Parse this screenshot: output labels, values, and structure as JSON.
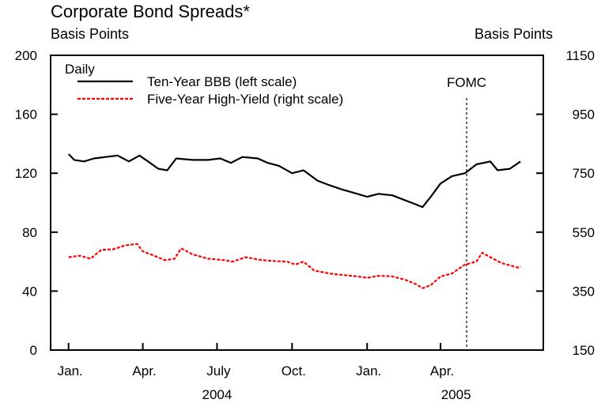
{
  "chart_data": {
    "type": "line",
    "title": "Corporate Bond Spreads*",
    "ylabel_left": "Basis Points",
    "ylabel_right": "Basis Points",
    "ylim_left": [
      0,
      200
    ],
    "ylim_right": [
      150,
      1150
    ],
    "yticks_left": [
      0,
      40,
      80,
      120,
      160,
      200
    ],
    "yticks_right": [
      150,
      350,
      550,
      750,
      950,
      1150
    ],
    "xlim": [
      "2003-12-10",
      "2005-08-05"
    ],
    "month_labels": [
      {
        "date": "2004-01-01",
        "label": "Jan."
      },
      {
        "date": "2004-04-01",
        "label": "Apr."
      },
      {
        "date": "2004-07-01",
        "label": "July"
      },
      {
        "date": "2004-10-01",
        "label": "Oct."
      },
      {
        "date": "2005-01-01",
        "label": "Jan."
      },
      {
        "date": "2005-04-01",
        "label": "Apr."
      }
    ],
    "year_labels": [
      {
        "date": "2004-07-01",
        "label": "2004"
      },
      {
        "date": "2005-04-20",
        "label": "2005"
      }
    ],
    "legend_heading": "Daily",
    "legend_position": "top-left",
    "grid": false,
    "annotation": {
      "label": "FOMC",
      "date": "2005-05-03"
    },
    "series": [
      {
        "name": "Ten-Year BBB (left scale)",
        "axis": "left",
        "color": "#000000",
        "style": "solid",
        "points": [
          [
            "2004-01-01",
            133
          ],
          [
            "2004-01-08",
            129
          ],
          [
            "2004-01-20",
            128
          ],
          [
            "2004-02-01",
            130
          ],
          [
            "2004-02-15",
            131
          ],
          [
            "2004-03-01",
            132
          ],
          [
            "2004-03-15",
            128
          ],
          [
            "2004-03-28",
            132
          ],
          [
            "2004-04-10",
            127
          ],
          [
            "2004-04-20",
            123
          ],
          [
            "2004-05-01",
            122
          ],
          [
            "2004-05-12",
            130
          ],
          [
            "2004-06-01",
            129
          ],
          [
            "2004-06-20",
            129
          ],
          [
            "2004-07-05",
            130
          ],
          [
            "2004-07-18",
            127
          ],
          [
            "2004-08-01",
            131
          ],
          [
            "2004-08-20",
            130
          ],
          [
            "2004-09-01",
            127
          ],
          [
            "2004-09-15",
            125
          ],
          [
            "2004-10-01",
            120
          ],
          [
            "2004-10-15",
            122
          ],
          [
            "2004-11-01",
            115
          ],
          [
            "2004-11-15",
            112
          ],
          [
            "2004-12-01",
            109
          ],
          [
            "2004-12-20",
            106
          ],
          [
            "2005-01-01",
            104
          ],
          [
            "2005-01-15",
            106
          ],
          [
            "2005-02-01",
            105
          ],
          [
            "2005-02-15",
            102
          ],
          [
            "2005-03-01",
            99
          ],
          [
            "2005-03-10",
            97
          ],
          [
            "2005-03-20",
            104
          ],
          [
            "2005-04-01",
            113
          ],
          [
            "2005-04-15",
            118
          ],
          [
            "2005-05-01",
            120
          ],
          [
            "2005-05-15",
            126
          ],
          [
            "2005-06-01",
            128
          ],
          [
            "2005-06-10",
            122
          ],
          [
            "2005-06-25",
            123
          ],
          [
            "2005-07-08",
            128
          ]
        ]
      },
      {
        "name": "Five-Year High-Yield (right scale)",
        "axis": "right",
        "color": "#ff0000",
        "style": "dashed",
        "points": [
          [
            "2004-01-01",
            465
          ],
          [
            "2004-01-15",
            470
          ],
          [
            "2004-01-28",
            460
          ],
          [
            "2004-02-10",
            490
          ],
          [
            "2004-02-25",
            492
          ],
          [
            "2004-03-10",
            505
          ],
          [
            "2004-03-25",
            510
          ],
          [
            "2004-04-01",
            485
          ],
          [
            "2004-04-15",
            470
          ],
          [
            "2004-04-28",
            455
          ],
          [
            "2004-05-10",
            460
          ],
          [
            "2004-05-18",
            495
          ],
          [
            "2004-06-01",
            475
          ],
          [
            "2004-06-20",
            460
          ],
          [
            "2004-07-10",
            455
          ],
          [
            "2004-07-20",
            450
          ],
          [
            "2004-08-05",
            465
          ],
          [
            "2004-08-25",
            455
          ],
          [
            "2004-09-10",
            452
          ],
          [
            "2004-09-25",
            450
          ],
          [
            "2004-10-05",
            440
          ],
          [
            "2004-10-15",
            450
          ],
          [
            "2004-10-28",
            420
          ],
          [
            "2004-11-15",
            410
          ],
          [
            "2004-12-01",
            405
          ],
          [
            "2004-12-20",
            400
          ],
          [
            "2005-01-01",
            395
          ],
          [
            "2005-01-15",
            402
          ],
          [
            "2005-02-01",
            400
          ],
          [
            "2005-02-15",
            390
          ],
          [
            "2005-03-01",
            375
          ],
          [
            "2005-03-10",
            360
          ],
          [
            "2005-03-20",
            370
          ],
          [
            "2005-04-01",
            400
          ],
          [
            "2005-04-15",
            410
          ],
          [
            "2005-05-01",
            440
          ],
          [
            "2005-05-15",
            450
          ],
          [
            "2005-05-22",
            480
          ],
          [
            "2005-06-01",
            465
          ],
          [
            "2005-06-15",
            445
          ],
          [
            "2005-07-05",
            430
          ],
          [
            "2005-07-08",
            435
          ]
        ]
      }
    ]
  }
}
